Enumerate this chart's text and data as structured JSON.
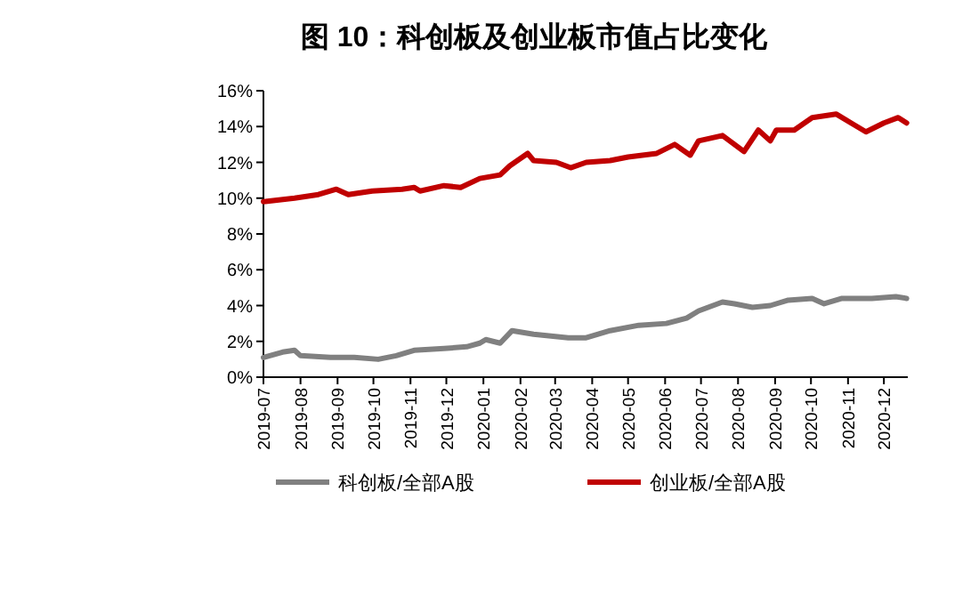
{
  "chart_data": {
    "type": "line",
    "title": "图 10：科创板及创业板市值占比变化",
    "xlim": [
      "2019-07-01",
      "2020-12-21"
    ],
    "xticks": [
      "2019-07",
      "2019-08",
      "2019-09",
      "2019-10",
      "2019-11",
      "2019-12",
      "2020-01",
      "2020-02",
      "2020-03",
      "2020-04",
      "2020-05",
      "2020-06",
      "2020-07",
      "2020-08",
      "2020-09",
      "2020-10",
      "2020-11",
      "2020-12"
    ],
    "ylim": [
      0,
      16
    ],
    "yticks": [
      {
        "value": 0,
        "label": "0%"
      },
      {
        "value": 2,
        "label": "2%"
      },
      {
        "value": 4,
        "label": "4%"
      },
      {
        "value": 6,
        "label": "6%"
      },
      {
        "value": 8,
        "label": "8%"
      },
      {
        "value": 10,
        "label": "10%"
      },
      {
        "value": 12,
        "label": "12%"
      },
      {
        "value": 14,
        "label": "14%"
      },
      {
        "value": 16,
        "label": "16%"
      }
    ],
    "legend": "bottom",
    "series": [
      {
        "name": "科创板/全部A股",
        "color": "#808080",
        "x": [
          "2019-07-01",
          "2019-07-17",
          "2019-07-27",
          "2019-08-01",
          "2019-08-26",
          "2019-09-15",
          "2019-10-05",
          "2019-10-20",
          "2019-11-04",
          "2019-11-29",
          "2019-12-18",
          "2019-12-29",
          "2020-01-03",
          "2020-01-15",
          "2020-01-25",
          "2020-02-12",
          "2020-03-12",
          "2020-03-27",
          "2020-04-16",
          "2020-05-10",
          "2020-06-02",
          "2020-06-19",
          "2020-06-29",
          "2020-07-19",
          "2020-07-29",
          "2020-08-13",
          "2020-08-28",
          "2020-09-12",
          "2020-10-02",
          "2020-10-12",
          "2020-10-27",
          "2020-11-21",
          "2020-12-11",
          "2020-12-20"
        ],
        "values": [
          1.1,
          1.4,
          1.5,
          1.2,
          1.1,
          1.1,
          1.0,
          1.2,
          1.5,
          1.6,
          1.7,
          1.9,
          2.1,
          1.9,
          2.6,
          2.4,
          2.2,
          2.2,
          2.6,
          2.9,
          3.0,
          3.3,
          3.7,
          4.2,
          4.1,
          3.9,
          4.0,
          4.3,
          4.4,
          4.1,
          4.4,
          4.4,
          4.5,
          4.4
        ]
      },
      {
        "name": "创业板/全部A股",
        "color": "#c00000",
        "x": [
          "2019-07-01",
          "2019-07-27",
          "2019-08-16",
          "2019-08-31",
          "2019-09-10",
          "2019-09-30",
          "2019-10-25",
          "2019-11-04",
          "2019-11-09",
          "2019-11-29",
          "2019-12-13",
          "2019-12-29",
          "2020-01-15",
          "2020-01-23",
          "2020-02-07",
          "2020-02-12",
          "2020-03-02",
          "2020-03-14",
          "2020-03-27",
          "2020-04-16",
          "2020-05-01",
          "2020-05-25",
          "2020-06-09",
          "2020-06-22",
          "2020-06-29",
          "2020-07-19",
          "2020-08-06",
          "2020-08-18",
          "2020-08-28",
          "2020-09-02",
          "2020-09-17",
          "2020-10-02",
          "2020-10-22",
          "2020-11-06",
          "2020-11-16",
          "2020-12-01",
          "2020-12-13",
          "2020-12-20"
        ],
        "values": [
          9.8,
          10.0,
          10.2,
          10.5,
          10.2,
          10.4,
          10.5,
          10.6,
          10.4,
          10.7,
          10.6,
          11.1,
          11.3,
          11.8,
          12.5,
          12.1,
          12.0,
          11.7,
          12.0,
          12.1,
          12.3,
          12.5,
          13.0,
          12.4,
          13.2,
          13.5,
          12.6,
          13.8,
          13.2,
          13.8,
          13.8,
          14.5,
          14.7,
          14.1,
          13.7,
          14.2,
          14.5,
          14.2
        ]
      }
    ]
  }
}
